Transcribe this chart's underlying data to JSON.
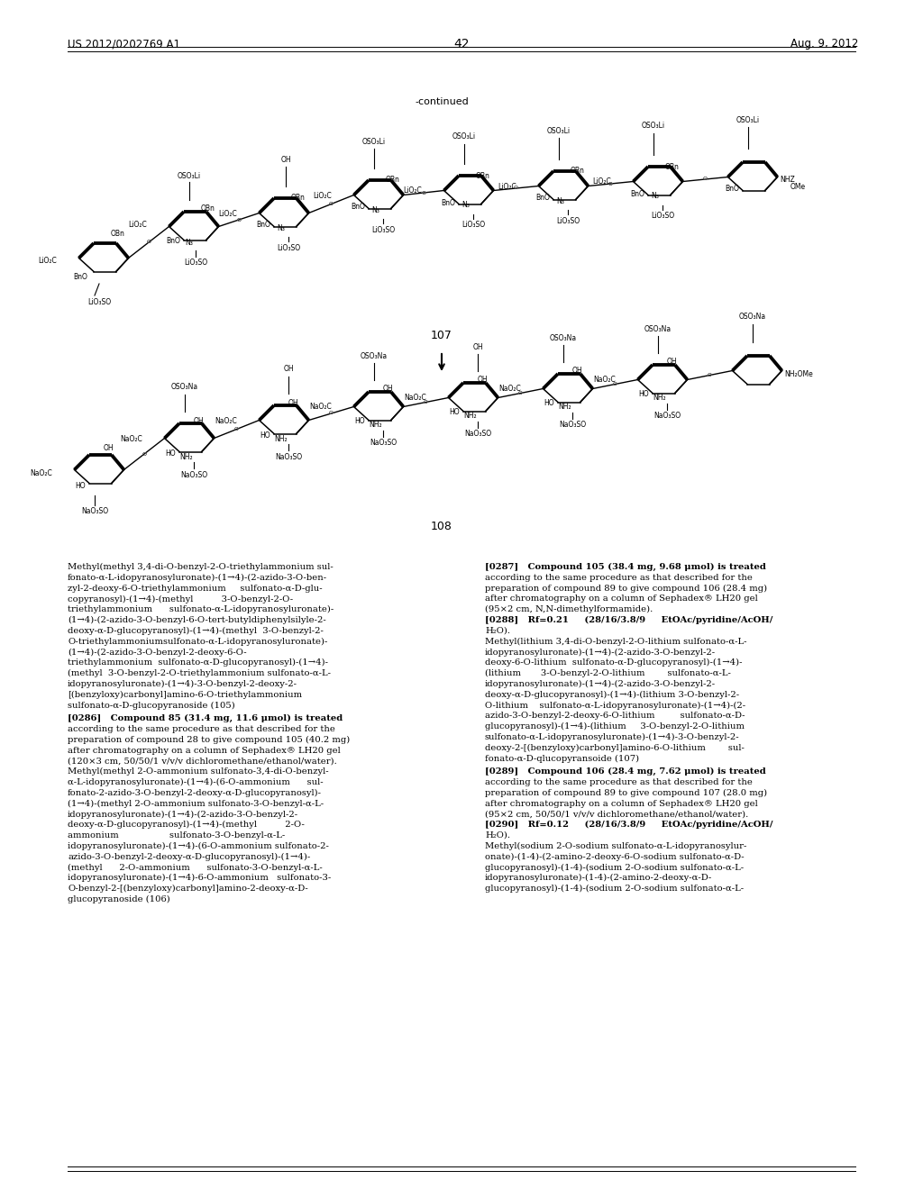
{
  "page_number": "42",
  "patent_number": "US 2012/0202769 A1",
  "patent_date": "Aug. 9, 2012",
  "continued_label": "-continued",
  "background_color": "#ffffff",
  "text_color": "#000000",
  "body_text_left": [
    "Methyl(methyl 3,4-di-O-benzyl-2-O-triethylammonium sul-",
    "fonato-α-L-idopyranosyluronate)-(1→4)-(2-azido-3-O-ben-",
    "zyl-2-deoxy-6-O-triethylammonium     sulfonato-α-D-glu-",
    "copyranosyl)-(1→4)-(methyl          3-O-benzyl-2-O-",
    "triethylammonium      sulfonato-α-L-idopyranosyluronate)-",
    "(1→4)-(2-azido-3-O-benzyl-6-O-tert-butyldiphenylsilyle-2-",
    "deoxy-α-D-glucopyranosyl)-(1→4)-(methyl  3-O-benzyl-2-",
    "O-triethylammoniumsulfonato-α-L-idopyranosyluronate)-",
    "(1→4)-(2-azido-3-O-benzyl-2-deoxy-6-O-",
    "triethylammonium  sulfonato-α-D-glucopyranosyl)-(1→4)-",
    "(methyl  3-O-benzyl-2-O-triethylammonium sulfonato-α-L-",
    "idopyranosyluronate)-(1→4)-3-O-benzyl-2-deoxy-2-",
    "[(benzyloxy)carbonyl]amino-6-O-triethylammonium",
    "sulfonato-α-D-glucopyranoside (105)"
  ],
  "body_text_left2": [
    "[0286]   Compound 85 (31.4 mg, 11.6 μmol) is treated",
    "according to the same procedure as that described for the",
    "preparation of compound 28 to give compound 105 (40.2 mg)",
    "after chromatography on a column of Sephadex® LH20 gel",
    "(120×3 cm, 50/50/1 v/v/v dichloromethane/ethanol/water).",
    "Methyl(methyl 2-O-ammonium sulfonato-3,4-di-O-benzyl-",
    "α-L-idopyranosyluronate)-(1→4)-(6-O-ammonium      sul-",
    "fonato-2-azido-3-O-benzyl-2-deoxy-α-D-glucopyranosyl)-",
    "(1→4)-(methyl 2-O-ammonium sulfonato-3-O-benzyl-α-L-",
    "idopyranosyluronate)-(1→4)-(2-azido-3-O-benzyl-2-",
    "deoxy-α-D-glucopyranosyl)-(1→4)-(methyl          2-O-",
    "ammonium                  sulfonato-3-O-benzyl-α-L-",
    "idopyranosyluronate)-(1→4)-(6-O-ammonium sulfonato-2-",
    "azido-3-O-benzyl-2-deoxy-α-D-glucopyranosyl)-(1→4)-",
    "(methyl      2-O-ammonium      sulfonato-3-O-benzyl-α-L-",
    "idopyranosyluronate)-(1→4)-6-O-ammonium   sulfonato-3-",
    "O-benzyl-2-[(benzyloxy)carbonyl]amino-2-deoxy-α-D-",
    "glucopyranoside (106)"
  ],
  "body_text_right": [
    "[0287]   Compound 105 (38.4 mg, 9.68 μmol) is treated",
    "according to the same procedure as that described for the",
    "preparation of compound 89 to give compound 106 (28.4 mg)",
    "after chromatography on a column of Sephadex® LH20 gel",
    "(95×2 cm, N,N-dimethylformamide).",
    "[0288]   Rf=0.21     (28/16/3.8/9     EtOAc/pyridine/AcOH/",
    "H₂O).",
    "Methyl(lithium 3,4-di-O-benzyl-2-O-lithium sulfonato-α-L-",
    "idopyranosyluronate)-(1→4)-(2-azido-3-O-benzyl-2-",
    "deoxy-6-O-lithium  sulfonato-α-D-glucopyranosyl)-(1→4)-",
    "(lithium       3-O-benzyl-2-O-lithium        sulfonato-α-L-",
    "idopyranosyluronate)-(1→4)-(2-azido-3-O-benzyl-2-",
    "deoxy-α-D-glucopyranosyl)-(1→4)-(lithium 3-O-benzyl-2-",
    "O-lithium    sulfonato-α-L-idopyranosyluronate)-(1→4)-(2-",
    "azido-3-O-benzyl-2-deoxy-6-O-lithium         sulfonato-α-D-",
    "glucopyranosyl)-(1→4)-(lithium     3-O-benzyl-2-O-lithium",
    "sulfonato-α-L-idopyranosyluronate)-(1→4)-3-O-benzyl-2-",
    "deoxy-2-[(benzyloxy)carbonyl]amino-6-O-lithium        sul-",
    "fonato-α-D-qlucopyransoide (107)"
  ],
  "body_text_right2": [
    "[0289]   Compound 106 (28.4 mg, 7.62 μmol) is treated",
    "according to the same procedure as that described for the",
    "preparation of compound 89 to give compound 107 (28.0 mg)",
    "after chromatography on a column of Sephadex® LH20 gel",
    "(95×2 cm, 50/50/1 v/v/v dichloromethane/ethanol/water).",
    "[0290]   Rf=0.12     (28/16/3.8/9     EtOAc/pyridine/AcOH/",
    "H₂O).",
    "Methyl(sodium 2-O-sodium sulfonato-α-L-idopyranosylur-",
    "onate)-(1-4)-(2-amino-2-deoxy-6-O-sodium sulfonato-α-D-",
    "glucopyranosyl)-(1-4)-(sodium 2-O-sodium sulfonato-α-L-",
    "idopyranosyluronate)-(1-4)-(2-amino-2-deoxy-α-D-",
    "glucopyranosyl)-(1-4)-(sodium 2-O-sodium sulfonato-α-L-"
  ]
}
